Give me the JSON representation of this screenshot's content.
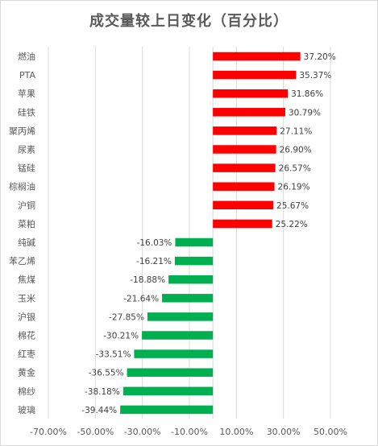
{
  "chart_data": {
    "type": "bar",
    "orientation": "horizontal",
    "title": "成交量较上日变化（百分比）",
    "categories": [
      "燃油",
      "PTA",
      "苹果",
      "硅铁",
      "聚丙烯",
      "尿素",
      "锰硅",
      "棕榈油",
      "沪铜",
      "菜粕",
      "纯碱",
      "苯乙烯",
      "焦煤",
      "玉米",
      "沪银",
      "棉花",
      "红枣",
      "黄金",
      "棉纱",
      "玻璃"
    ],
    "values": [
      37.2,
      35.37,
      31.86,
      30.79,
      27.11,
      26.9,
      26.57,
      26.19,
      25.67,
      25.22,
      -16.03,
      -16.21,
      -18.88,
      -21.64,
      -27.85,
      -30.21,
      -33.51,
      -36.55,
      -38.18,
      -39.44
    ],
    "data_labels": [
      "37.20%",
      "35.37%",
      "31.86%",
      "30.79%",
      "27.11%",
      "26.90%",
      "26.57%",
      "26.19%",
      "25.67%",
      "25.22%",
      "-16.03%",
      "-16.21%",
      "-18.88%",
      "-21.64%",
      "-27.85%",
      "-30.21%",
      "-33.51%",
      "-36.55%",
      "-38.18%",
      "-39.44%"
    ],
    "xlim": [
      -70,
      50
    ],
    "xticks": [
      -70,
      -50,
      -30,
      -10,
      10,
      30,
      50
    ],
    "xtick_labels": [
      "-70.00%",
      "-50.00%",
      "-30.00%",
      "-10.00%",
      "10.00%",
      "30.00%",
      "50.00%"
    ],
    "colors": {
      "positive": "#ff0000",
      "negative": "#00b050",
      "grid": "#d9d9d9",
      "text": "#595959",
      "title": "#595959"
    },
    "grid": true,
    "legend": false,
    "xlabel": "",
    "ylabel": ""
  }
}
